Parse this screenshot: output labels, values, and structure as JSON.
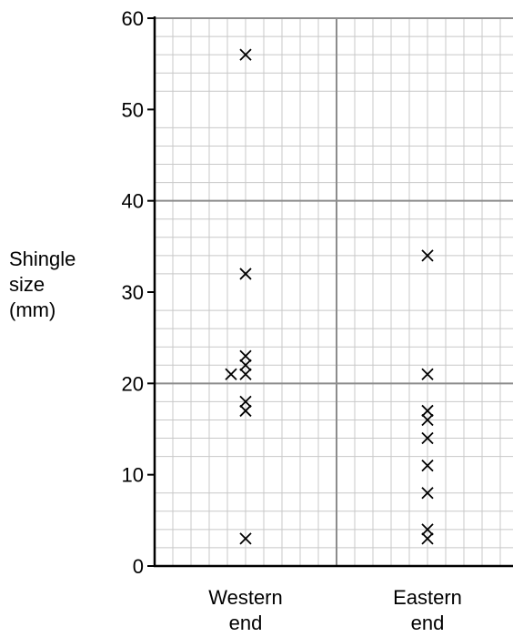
{
  "chart_data": {
    "type": "scatter",
    "title": "",
    "ylabel_lines": [
      "Shingle",
      "size",
      "(mm)"
    ],
    "xlabel": "",
    "ylim": [
      0,
      60
    ],
    "y_ticks": [
      0,
      10,
      20,
      30,
      40,
      50,
      60
    ],
    "grid": true,
    "categories": [
      {
        "lines": [
          "Western",
          "end"
        ]
      },
      {
        "lines": [
          "Eastern",
          "end"
        ]
      }
    ],
    "series": [
      {
        "category": 0,
        "values": [
          56,
          32,
          23,
          22,
          21,
          18,
          17,
          3
        ]
      },
      {
        "category": 0,
        "offset": "left",
        "values": [
          21
        ]
      },
      {
        "category": 1,
        "values": [
          34,
          21,
          17,
          16,
          14,
          11,
          8,
          4,
          3
        ]
      }
    ],
    "marker": "cross",
    "colors": {
      "grid_minor": "#c8c8c8",
      "grid_major": "#8c8c8c",
      "axis": "#000000",
      "marker": "#000000"
    }
  }
}
